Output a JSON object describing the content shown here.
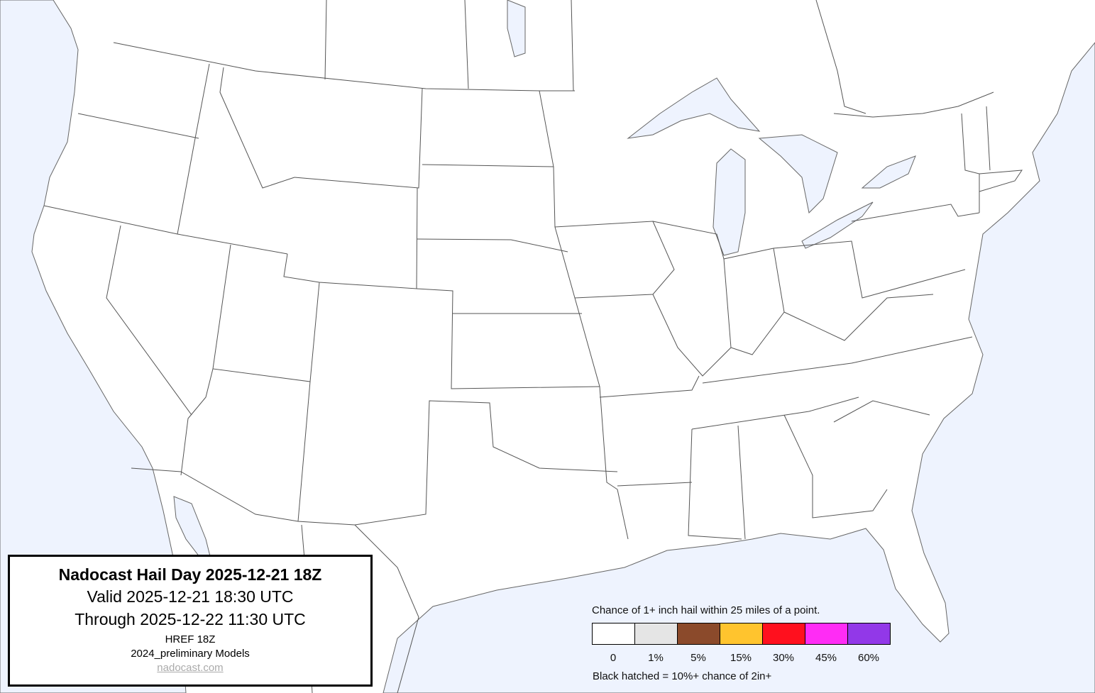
{
  "title_box": {
    "title": "Nadocast Hail Day 2025-12-21 18Z",
    "valid": "Valid 2025-12-21 18:30 UTC",
    "through": "Through 2025-12-22 11:30 UTC",
    "model": "HREF 18Z",
    "models_version": "2024_preliminary Models",
    "link": "nadocast.com"
  },
  "legend": {
    "caption": "Chance of 1+ inch hail within 25 miles of a point.",
    "bins": [
      {
        "label": "0",
        "color": "#ffffff"
      },
      {
        "label": "1%",
        "color": "#e5e5e5"
      },
      {
        "label": "5%",
        "color": "#8b4a2b"
      },
      {
        "label": "15%",
        "color": "#ffc42e"
      },
      {
        "label": "30%",
        "color": "#ff101e"
      },
      {
        "label": "45%",
        "color": "#ff2cf5"
      },
      {
        "label": "60%",
        "color": "#9238e8"
      }
    ],
    "hatch_note": "Black hatched = 10%+ chance of 2in+"
  },
  "map": {
    "water_color": "#eef3fe",
    "land_color": "#ffffff",
    "border_color": "#555555",
    "hail_areas": []
  }
}
